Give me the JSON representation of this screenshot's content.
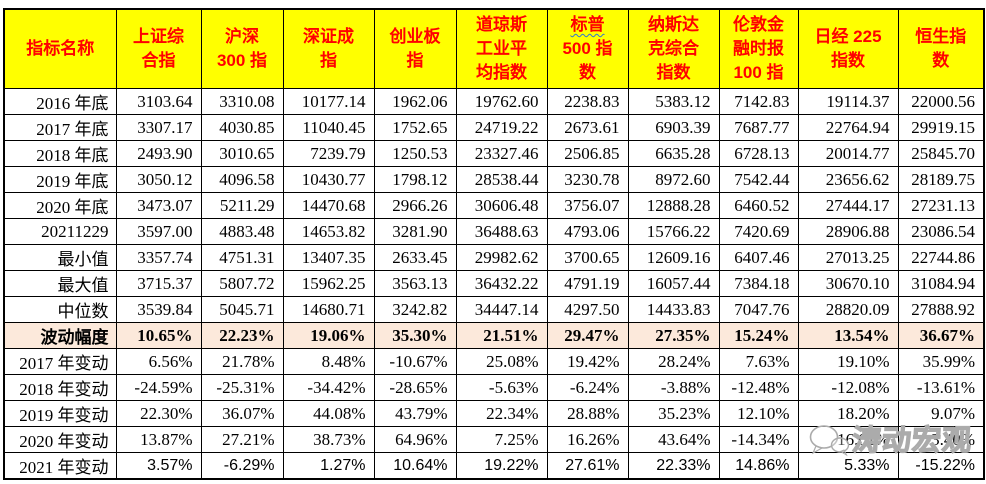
{
  "table": {
    "corner_header": "指标名称",
    "columns": [
      {
        "lines": [
          "上证综",
          "合指"
        ]
      },
      {
        "lines": [
          "沪深",
          "300 指"
        ]
      },
      {
        "lines": [
          "深证成",
          "指"
        ]
      },
      {
        "lines": [
          "创业板",
          "指"
        ]
      },
      {
        "lines": [
          "道琼斯",
          "工业平",
          "均指数"
        ]
      },
      {
        "lines": [
          "标普",
          "500 指",
          "数"
        ],
        "squiggle_line": 0
      },
      {
        "lines": [
          "纳斯达",
          "克综合",
          "指数"
        ]
      },
      {
        "lines": [
          "伦敦金",
          "融时报",
          "100 指"
        ]
      },
      {
        "lines": [
          "日经 225",
          "指数"
        ]
      },
      {
        "lines": [
          "恒生指",
          "数"
        ]
      }
    ],
    "rows": [
      {
        "label": "2016 年底",
        "style": "normal",
        "values": [
          "3103.64",
          "3310.08",
          "10177.14",
          "1962.06",
          "19762.60",
          "2238.83",
          "5383.12",
          "7142.83",
          "19114.37",
          "22000.56"
        ]
      },
      {
        "label": "2017 年底",
        "style": "normal",
        "values": [
          "3307.17",
          "4030.85",
          "11040.45",
          "1752.65",
          "24719.22",
          "2673.61",
          "6903.39",
          "7687.77",
          "22764.94",
          "29919.15"
        ]
      },
      {
        "label": "2018 年底",
        "style": "normal",
        "values": [
          "2493.90",
          "3010.65",
          "7239.79",
          "1250.53",
          "23327.46",
          "2506.85",
          "6635.28",
          "6728.13",
          "20014.77",
          "25845.70"
        ]
      },
      {
        "label": "2019 年底",
        "style": "normal",
        "values": [
          "3050.12",
          "4096.58",
          "10430.77",
          "1798.12",
          "28538.44",
          "3230.78",
          "8972.60",
          "7542.44",
          "23656.62",
          "28189.75"
        ]
      },
      {
        "label": "2020 年底",
        "style": "normal",
        "values": [
          "3473.07",
          "5211.29",
          "14470.68",
          "2966.26",
          "30606.48",
          "3756.07",
          "12888.28",
          "6460.52",
          "27444.17",
          "27231.13"
        ]
      },
      {
        "label": "20211229",
        "style": "normal",
        "values": [
          "3597.00",
          "4883.48",
          "14653.82",
          "3281.90",
          "36488.63",
          "4793.06",
          "15766.22",
          "7420.69",
          "28906.88",
          "23086.54"
        ]
      },
      {
        "label": "最小值",
        "style": "normal",
        "values": [
          "3357.74",
          "4751.31",
          "13407.35",
          "2633.45",
          "29982.62",
          "3700.65",
          "12609.16",
          "6407.46",
          "27013.25",
          "22744.86"
        ]
      },
      {
        "label": "最大值",
        "style": "normal",
        "values": [
          "3715.37",
          "5807.72",
          "15962.25",
          "3563.13",
          "36432.22",
          "4791.19",
          "16057.44",
          "7384.18",
          "30670.10",
          "31084.94"
        ]
      },
      {
        "label": "中位数",
        "style": "normal",
        "values": [
          "3539.84",
          "5045.71",
          "14680.71",
          "3242.82",
          "34447.14",
          "4297.50",
          "14433.83",
          "7047.76",
          "28820.09",
          "27888.92"
        ]
      },
      {
        "label": "波动幅度",
        "style": "highlight",
        "values": [
          "10.65%",
          "22.23%",
          "19.06%",
          "35.30%",
          "21.51%",
          "29.47%",
          "27.35%",
          "15.24%",
          "13.54%",
          "36.67%"
        ]
      },
      {
        "label": "2017 年变动",
        "style": "normal",
        "values": [
          "6.56%",
          "21.78%",
          "8.48%",
          "-10.67%",
          "25.08%",
          "19.42%",
          "28.24%",
          "7.63%",
          "19.10%",
          "35.99%"
        ]
      },
      {
        "label": "2018 年变动",
        "style": "normal",
        "values": [
          "-24.59%",
          "-25.31%",
          "-34.42%",
          "-28.65%",
          "-5.63%",
          "-6.24%",
          "-3.88%",
          "-12.48%",
          "-12.08%",
          "-13.61%"
        ]
      },
      {
        "label": "2019 年变动",
        "style": "normal",
        "values": [
          "22.30%",
          "36.07%",
          "44.08%",
          "43.79%",
          "22.34%",
          "28.88%",
          "35.23%",
          "12.10%",
          "18.20%",
          "9.07%"
        ]
      },
      {
        "label": "2020 年变动",
        "style": "normal",
        "values": [
          "13.87%",
          "27.21%",
          "38.73%",
          "64.96%",
          "7.25%",
          "16.26%",
          "43.64%",
          "-14.34%",
          "16.01%",
          "-3.40%"
        ]
      },
      {
        "label": "2021 年变动",
        "style": "sans",
        "values": [
          "3.57%",
          "-6.29%",
          "1.27%",
          "10.64%",
          "19.22%",
          "27.61%",
          "22.33%",
          "14.86%",
          "5.33%",
          "-15.22%"
        ]
      }
    ]
  },
  "watermark": {
    "text": "涛动宏观",
    "icon": "wechat-chat-bubbles-icon"
  },
  "colors": {
    "header_bg": "#FFFF00",
    "header_text": "#FF0000",
    "highlight_bg": "#FCE9DB",
    "grid": "#000000",
    "squiggle": "#2E75D6",
    "watermark": "#ABABAB"
  }
}
